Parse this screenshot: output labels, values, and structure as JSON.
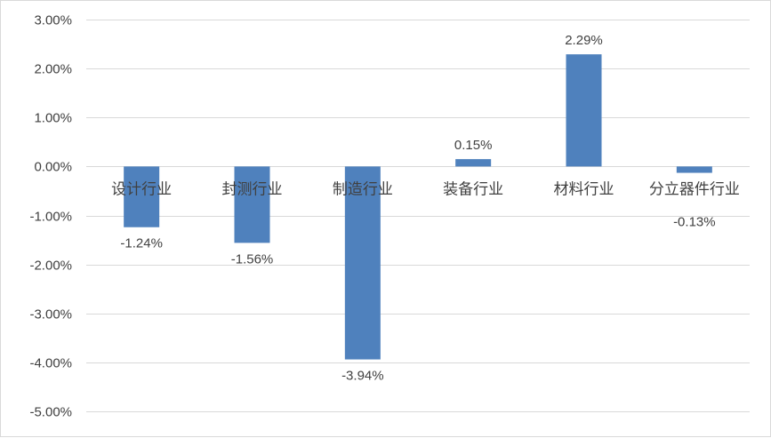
{
  "chart_data": {
    "type": "bar",
    "categories": [
      "设计行业",
      "封测行业",
      "制造行业",
      "装备行业",
      "材料行业",
      "分立器件行业"
    ],
    "values": [
      -1.24,
      -1.56,
      -3.94,
      0.15,
      2.29,
      -0.13
    ],
    "data_labels": [
      "-1.24%",
      "-1.56%",
      "-3.94%",
      "0.15%",
      "2.29%",
      "-0.13%"
    ],
    "y_ticks": [
      "3.00%",
      "2.00%",
      "1.00%",
      "0.00%",
      "-1.00%",
      "-2.00%",
      "-3.00%",
      "-4.00%",
      "-5.00%"
    ],
    "ylim": [
      -5,
      3
    ],
    "grid": true,
    "legend": "none",
    "bar_color": "#4f81bd",
    "grid_color": "#d9d9d9"
  }
}
